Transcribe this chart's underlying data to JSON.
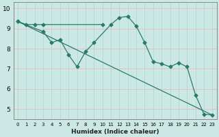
{
  "xlabel": "Humidex (Indice chaleur)",
  "bg_color": "#cce8e4",
  "grid_color_minor": "#b8ddd8",
  "grid_color_major": "#f0c8c8",
  "line_color": "#2a7a6a",
  "xlim": [
    -0.5,
    23.5
  ],
  "ylim": [
    4.5,
    10.3
  ],
  "yticks": [
    5,
    6,
    7,
    8,
    9,
    10
  ],
  "xticks": [
    0,
    1,
    2,
    3,
    4,
    5,
    6,
    7,
    8,
    9,
    10,
    11,
    12,
    13,
    14,
    15,
    16,
    17,
    18,
    19,
    20,
    21,
    22,
    23
  ],
  "line1_x": [
    0,
    1,
    2,
    3,
    10
  ],
  "line1_y": [
    9.35,
    9.2,
    9.2,
    9.2,
    9.2
  ],
  "line2_x": [
    0,
    3,
    4,
    5,
    6,
    7,
    8,
    9,
    11,
    12,
    13,
    14,
    15,
    16,
    17,
    18,
    19,
    20,
    21,
    22,
    23
  ],
  "line2_y": [
    9.35,
    8.85,
    8.3,
    8.45,
    7.7,
    7.1,
    7.85,
    8.3,
    9.2,
    9.55,
    9.6,
    9.12,
    8.3,
    7.35,
    7.25,
    7.1,
    7.3,
    7.1,
    5.7,
    4.75,
    4.7
  ],
  "line3_x": [
    0,
    23
  ],
  "line3_y": [
    9.35,
    4.7
  ]
}
